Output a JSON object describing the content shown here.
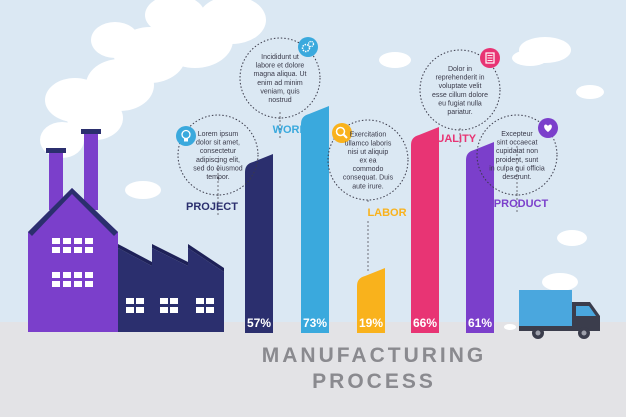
{
  "title": {
    "line1": "MANUFACTURING",
    "line2": "PROCESS"
  },
  "colors": {
    "background": "#dbe8f3",
    "ground": "#e3e3e6",
    "factory": "#7b3fcb",
    "factory_dark": "#2b2f6e",
    "truck_cargo": "#4aa7de",
    "truck_cab": "#3b3d4c"
  },
  "chart_data": {
    "type": "bar",
    "categories": [
      "PROJECT",
      "WORK",
      "LABOR",
      "QUALITY",
      "PRODUCT"
    ],
    "values": [
      57,
      73,
      19,
      66,
      61
    ],
    "value_labels": [
      "57%",
      "73%",
      "19%",
      "66%",
      "61%"
    ],
    "colors": [
      "#2b2f6e",
      "#3aa9dd",
      "#f9b21c",
      "#e83474",
      "#7b3fcb"
    ],
    "ylim": [
      0,
      100
    ]
  },
  "steps": [
    {
      "label": "PROJECT",
      "value_label": "57%",
      "icon": "lightbulb-icon",
      "icon_color": "#3aa9dd",
      "text": [
        "Lorem ipsum",
        "dolor sit amet,",
        "consectetur",
        "adipiscing elit,",
        "sed do eiusmod",
        "tempor."
      ]
    },
    {
      "label": "WORK",
      "value_label": "73%",
      "icon": "gears-icon",
      "icon_color": "#3aa9dd",
      "text": [
        "Incididunt ut",
        "labore et dolore",
        "magna aliqua. Ut",
        "enim ad minim",
        "veniam, quis",
        "nostrud"
      ]
    },
    {
      "label": "LABOR",
      "value_label": "19%",
      "icon": "magnifier-icon",
      "icon_color": "#f9b21c",
      "text": [
        "Exercitation",
        "ullamco laboris",
        "nisi ut aliquip",
        "ex ea",
        "commodo",
        "consequat. Duis",
        "aute irure."
      ]
    },
    {
      "label": "QUALITY",
      "value_label": "66%",
      "icon": "checklist-icon",
      "icon_color": "#e83474",
      "text": [
        "Dolor in",
        "reprehenderit in",
        "voluptate velit",
        "esse cillum dolore",
        "eu fugiat nulla",
        "pariatur."
      ]
    },
    {
      "label": "PRODUCT",
      "value_label": "61%",
      "icon": "heart-icon",
      "icon_color": "#7b3fcb",
      "text": [
        "Excepteur",
        "sint occaecat",
        "cupidatat non",
        "proident, sunt",
        "in culpa qui officia",
        "deserunt."
      ]
    }
  ]
}
